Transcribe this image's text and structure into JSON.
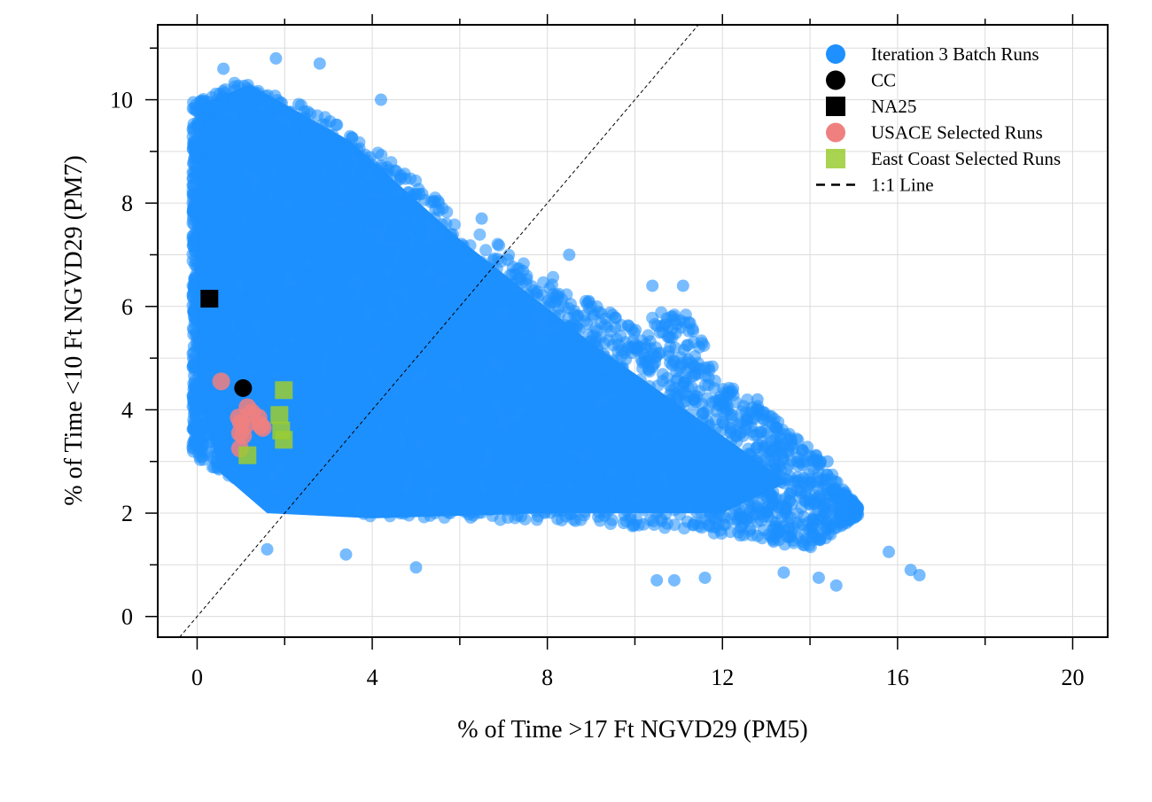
{
  "chart_data": {
    "type": "scatter",
    "xlabel": "% of Time >17 Ft NGVD29 (PM5)",
    "ylabel": "% of Time <10 Ft NGVD29 (PM7)",
    "xlim": [
      -0.9,
      20.8
    ],
    "ylim": [
      -0.4,
      11.45
    ],
    "x_ticks": [
      0,
      4,
      8,
      12,
      16,
      20
    ],
    "y_ticks": [
      0,
      2,
      4,
      6,
      8,
      10
    ],
    "grid": true,
    "legend_position": "top-right",
    "legend": [
      {
        "label": "Iteration 3 Batch Runs",
        "marker": "circle",
        "color": "#1E90FF"
      },
      {
        "label": "CC",
        "marker": "circle",
        "color": "#000000"
      },
      {
        "label": "NA25",
        "marker": "square",
        "color": "#000000"
      },
      {
        "label": "USACE Selected Runs",
        "marker": "circle",
        "color": "#F08080"
      },
      {
        "label": "East Coast Selected Runs",
        "marker": "square",
        "color": "#9ACD32"
      },
      {
        "label": "1:1 Line",
        "marker": "dashed-line",
        "color": "#000000"
      }
    ],
    "series": [
      {
        "name": "Iteration 3 Batch Runs",
        "marker": "circle",
        "color": "#1E90FF",
        "point_count_approx": 20000,
        "envelope": {
          "left_edge": [
            [
              0.0,
              9.6
            ],
            [
              -0.1,
              8.0
            ],
            [
              -0.1,
              6.0
            ],
            [
              0.1,
              4.0
            ],
            [
              0.5,
              2.6
            ],
            [
              1.6,
              1.8
            ]
          ],
          "top_edge": [
            [
              0.1,
              10.4
            ],
            [
              0.9,
              10.8
            ],
            [
              2.0,
              10.5
            ],
            [
              4.0,
              9.6
            ],
            [
              6.0,
              8.0
            ],
            [
              8.0,
              6.9
            ],
            [
              10.0,
              5.8
            ],
            [
              11.0,
              6.4
            ],
            [
              12.0,
              4.8
            ],
            [
              14.0,
              3.4
            ],
            [
              15.2,
              2.0
            ]
          ],
          "bottom_edge": [
            [
              1.6,
              1.8
            ],
            [
              4.0,
              1.5
            ],
            [
              8.0,
              1.6
            ],
            [
              10.0,
              1.5
            ],
            [
              12.0,
              1.4
            ],
            [
              14.0,
              1.2
            ],
            [
              15.2,
              2.0
            ]
          ]
        },
        "density_center": [
          [
            1.5,
            7.0
          ],
          [
            4.0,
            5.0
          ],
          [
            8.0,
            3.5
          ],
          [
            12.0,
            2.7
          ]
        ],
        "outliers": [
          [
            0.6,
            10.6
          ],
          [
            1.8,
            10.8
          ],
          [
            2.8,
            10.7
          ],
          [
            4.2,
            10.0
          ],
          [
            6.5,
            7.7
          ],
          [
            8.5,
            7.0
          ],
          [
            10.4,
            6.4
          ],
          [
            11.1,
            6.4
          ],
          [
            12.8,
            4.2
          ],
          [
            14.4,
            3.0
          ],
          [
            15.8,
            1.25
          ],
          [
            16.3,
            0.9
          ],
          [
            16.5,
            0.8
          ],
          [
            14.6,
            0.6
          ],
          [
            14.2,
            0.75
          ],
          [
            13.4,
            0.85
          ],
          [
            10.5,
            0.7
          ],
          [
            10.9,
            0.7
          ],
          [
            11.6,
            0.75
          ],
          [
            5.0,
            0.95
          ],
          [
            1.6,
            1.3
          ],
          [
            3.4,
            1.2
          ]
        ]
      },
      {
        "name": "CC",
        "marker": "circle",
        "color": "#000000",
        "points": [
          [
            1.05,
            4.42
          ]
        ]
      },
      {
        "name": "NA25",
        "marker": "square",
        "color": "#000000",
        "points": [
          [
            0.28,
            6.15
          ]
        ]
      },
      {
        "name": "USACE Selected Runs",
        "marker": "circle",
        "color": "#F08080",
        "points": [
          [
            0.55,
            4.55
          ],
          [
            1.15,
            4.05
          ],
          [
            1.25,
            3.95
          ],
          [
            1.4,
            3.85
          ],
          [
            0.95,
            3.85
          ],
          [
            1.0,
            3.75
          ],
          [
            1.1,
            3.7
          ],
          [
            1.45,
            3.7
          ],
          [
            1.5,
            3.65
          ],
          [
            0.98,
            3.55
          ],
          [
            1.05,
            3.5
          ],
          [
            0.98,
            3.25
          ]
        ]
      },
      {
        "name": "East Coast Selected Runs",
        "marker": "square",
        "color": "#9ACD32",
        "points": [
          [
            1.98,
            4.38
          ],
          [
            1.88,
            3.9
          ],
          [
            1.92,
            3.6
          ],
          [
            1.98,
            3.42
          ],
          [
            1.15,
            3.12
          ]
        ]
      }
    ],
    "reference_line": {
      "name": "1:1 Line",
      "style": "dashed",
      "from": [
        -0.4,
        -0.4
      ],
      "to": [
        11.5,
        11.5
      ]
    }
  }
}
